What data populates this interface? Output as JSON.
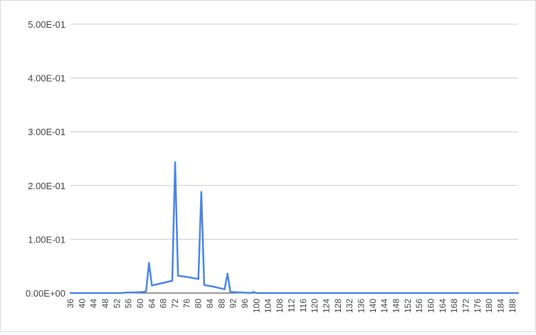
{
  "chart_data": {
    "type": "line",
    "title": "",
    "xlabel": "",
    "ylabel": "",
    "series_color": "#4a86e8",
    "gridlines": true,
    "legend": "none",
    "xlim": [
      36,
      190
    ],
    "ylim": [
      0,
      0.5
    ],
    "y_ticks": [
      {
        "value": 0.0,
        "label": "0.00E+00"
      },
      {
        "value": 0.1,
        "label": "1.00E-01"
      },
      {
        "value": 0.2,
        "label": "2.00E-01"
      },
      {
        "value": 0.3,
        "label": "3.00E-01"
      },
      {
        "value": 0.4,
        "label": "4.00E-01"
      },
      {
        "value": 0.5,
        "label": "5.00E-01"
      }
    ],
    "x_ticks": [
      36,
      40,
      44,
      48,
      52,
      56,
      60,
      64,
      68,
      72,
      76,
      80,
      84,
      88,
      92,
      96,
      100,
      104,
      108,
      112,
      116,
      120,
      124,
      128,
      132,
      136,
      140,
      144,
      148,
      152,
      156,
      160,
      164,
      168,
      172,
      176,
      180,
      184,
      188
    ],
    "series": [
      {
        "x": [
          36,
          54,
          55,
          56,
          57,
          61,
          62,
          63,
          64,
          68,
          71,
          72,
          73,
          76,
          80,
          81,
          82,
          85,
          89,
          90,
          91,
          95,
          98,
          99,
          100,
          104,
          190
        ],
        "y": [
          0,
          0,
          0.001,
          0.001,
          0.001,
          0.002,
          0.003,
          0.056,
          0.014,
          0.019,
          0.023,
          0.243,
          0.032,
          0.03,
          0.026,
          0.188,
          0.015,
          0.012,
          0.007,
          0.036,
          0.002,
          0.001,
          0,
          0.002,
          0,
          0,
          0
        ]
      }
    ]
  }
}
